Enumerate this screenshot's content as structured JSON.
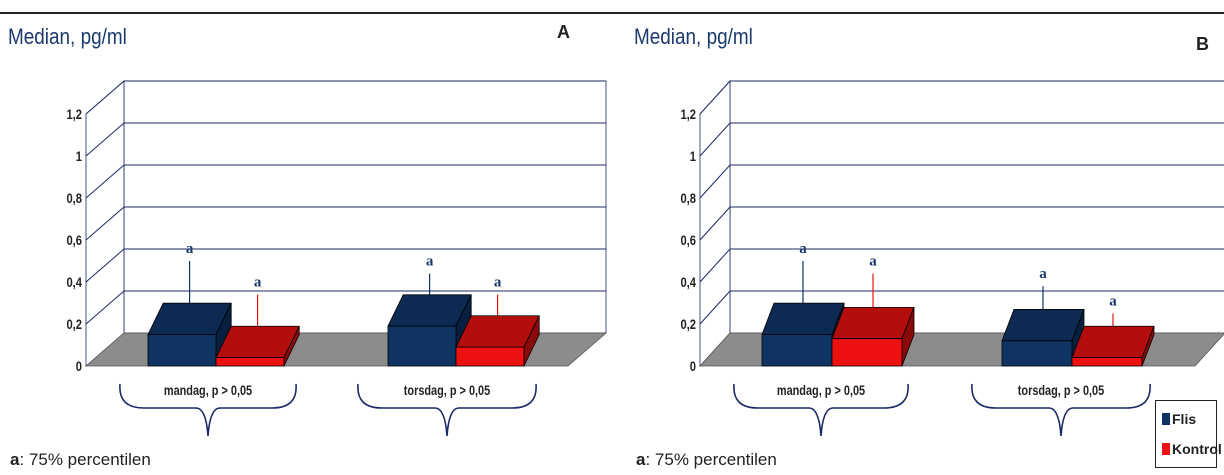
{
  "chart_data": [
    {
      "type": "bar",
      "panel_letter": "A",
      "title": "Median, pg/ml",
      "categories": [
        "mandag, p > 0,05",
        "torsdag, p > 0,05"
      ],
      "series": [
        {
          "name": "Flis",
          "values": [
            0.15,
            0.19
          ],
          "percentile_75": [
            0.5,
            0.44
          ],
          "marker": [
            "a",
            "a"
          ]
        },
        {
          "name": "Kontrol",
          "values": [
            0.04,
            0.09
          ],
          "percentile_75": [
            0.34,
            0.34
          ],
          "marker": [
            "a",
            "a"
          ]
        }
      ],
      "y_ticks": [
        "0",
        "0,2",
        "0,4",
        "0,6",
        "0,8",
        "1",
        "1,2"
      ],
      "ylim": [
        0,
        1.2
      ],
      "grid": true,
      "footnote_key": "a",
      "footnote_text": ": 75% percentilen"
    },
    {
      "type": "bar",
      "panel_letter": "B",
      "title": "Median, pg/ml",
      "categories": [
        "mandag, p > 0,05",
        "torsdag, p > 0,05"
      ],
      "series": [
        {
          "name": "Flis",
          "values": [
            0.15,
            0.12
          ],
          "percentile_75": [
            0.5,
            0.38
          ],
          "marker": [
            "a",
            "a"
          ]
        },
        {
          "name": "Kontrol",
          "values": [
            0.13,
            0.04
          ],
          "percentile_75": [
            0.44,
            0.25
          ],
          "marker": [
            "a",
            "a"
          ]
        }
      ],
      "y_ticks": [
        "0",
        "0,2",
        "0,4",
        "0,6",
        "0,8",
        "1",
        "1,2"
      ],
      "ylim": [
        0,
        1.2
      ],
      "grid": true,
      "footnote_key": "a",
      "footnote_text": ": 75% percentilen"
    }
  ],
  "legend": {
    "placement": "bottom-right",
    "items": [
      {
        "label": "Flis",
        "color": "#0f3463"
      },
      {
        "label": "Kontrol",
        "color": "#ee1111"
      }
    ]
  },
  "colors": {
    "flis_front": "#0f3463",
    "flis_top": "#0c2a52",
    "flis_side": "#08203f",
    "kontrol_front": "#ee1111",
    "kontrol_top": "#b40d0d",
    "kontrol_side": "#8a0a0a",
    "floor": "#8c8c8c",
    "wall": "#ffffff",
    "grid": "#1b2a66",
    "axis_text": "#222222",
    "marker": "#1b3a6e"
  }
}
